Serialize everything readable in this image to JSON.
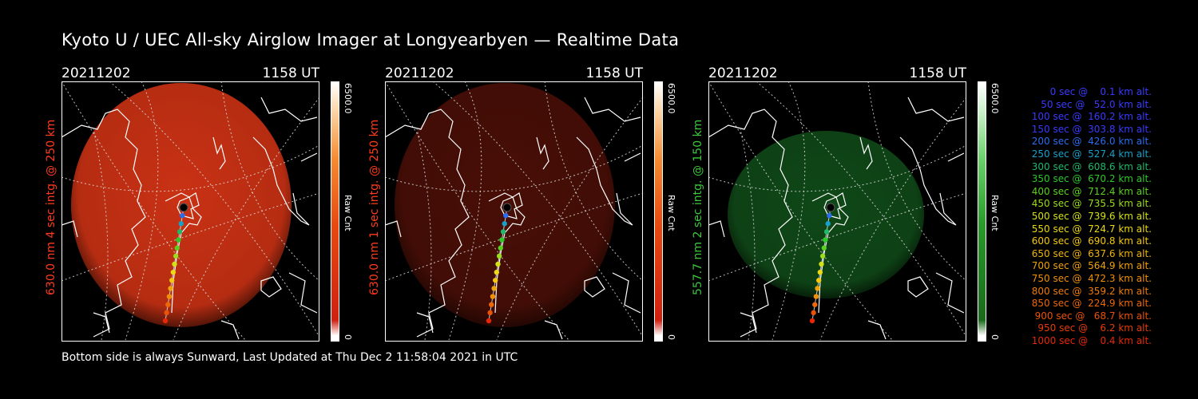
{
  "title": "Kyoto U / UEC All-sky Airglow Imager at Longyearbyen — Realtime Data",
  "footer": "Bottom side is always Sunward, Last Updated at Thu Dec  2 11:58:04 2021 in UTC",
  "panels": [
    {
      "date": "20211202",
      "time": "1158 UT",
      "ylabel": "630.0 nm  4 sec intg. @ 250 km",
      "ylabel_color": "#ff3b1c",
      "cbar_max": "6500.0",
      "cbar_min": "0",
      "cbar_title": "Raw Cnt",
      "color": "#d43415",
      "opacity": 0.95
    },
    {
      "date": "20211202",
      "time": "1158 UT",
      "ylabel": "630.0 nm  1 sec intg. @ 250 km",
      "ylabel_color": "#ff3b1c",
      "cbar_max": "6500.0",
      "cbar_min": "0",
      "cbar_title": "Raw Cnt",
      "color": "#5a1208",
      "opacity": 0.8
    },
    {
      "date": "20211202",
      "time": "1158 UT",
      "ylabel": "557.7 nm  2 sec intg. @ 150 km",
      "ylabel_color": "#3ec63e",
      "cbar_max": "6500.0",
      "cbar_min": "0",
      "cbar_title": "Raw Cnt",
      "color": "#11501a",
      "opacity": 0.9
    }
  ],
  "legend": [
    {
      "text": "   0 sec @    0.1 km alt.",
      "color": "#3a3aff"
    },
    {
      "text": "  50 sec @   52.0 km alt.",
      "color": "#3a3aff"
    },
    {
      "text": " 100 sec @  160.2 km alt.",
      "color": "#3a3aff"
    },
    {
      "text": " 150 sec @  303.8 km alt.",
      "color": "#3a3aff"
    },
    {
      "text": " 200 sec @  426.0 km alt.",
      "color": "#2a6cf0"
    },
    {
      "text": " 250 sec @  527.4 km alt.",
      "color": "#19a0c8"
    },
    {
      "text": " 300 sec @  608.6 km alt.",
      "color": "#21b86a"
    },
    {
      "text": " 350 sec @  670.2 km alt.",
      "color": "#2ec82a"
    },
    {
      "text": " 400 sec @  712.4 km alt.",
      "color": "#5ad020"
    },
    {
      "text": " 450 sec @  735.5 km alt.",
      "color": "#9adc1e"
    },
    {
      "text": " 500 sec @  739.6 km alt.",
      "color": "#d2e01a"
    },
    {
      "text": " 550 sec @  724.7 km alt.",
      "color": "#ecd814"
    },
    {
      "text": " 600 sec @  690.8 km alt.",
      "color": "#f4c810"
    },
    {
      "text": " 650 sec @  637.6 km alt.",
      "color": "#f0b40c"
    },
    {
      "text": " 700 sec @  564.9 km alt.",
      "color": "#f0a20a"
    },
    {
      "text": " 750 sec @  472.3 km alt.",
      "color": "#f09008"
    },
    {
      "text": " 800 sec @  359.2 km alt.",
      "color": "#ee7c08"
    },
    {
      "text": " 850 sec @  224.9 km alt.",
      "color": "#ec6808"
    },
    {
      "text": " 900 sec @   68.7 km alt.",
      "color": "#ea5208"
    },
    {
      "text": " 950 sec @    6.2 km alt.",
      "color": "#e83c08"
    },
    {
      "text": "1000 sec @    0.4 km alt.",
      "color": "#e62808"
    }
  ]
}
